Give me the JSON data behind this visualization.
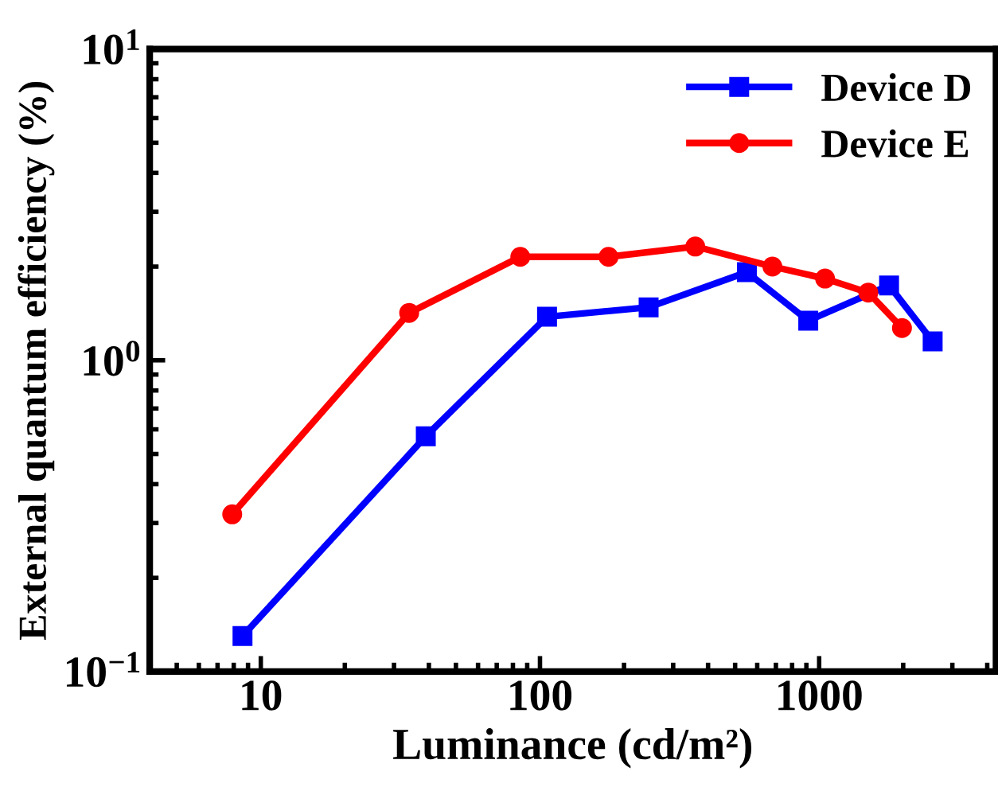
{
  "chart_data": {
    "type": "line",
    "xlabel": "Luminance (cd/m²)",
    "ylabel": "External quantum efficiency (%)",
    "log": "xy",
    "xlim": [
      4,
      4300
    ],
    "ylim": [
      0.1,
      10
    ],
    "xticks": [
      10,
      100,
      1000
    ],
    "yticks": [
      {
        "value": 0.1,
        "label": "10$^{−1}$"
      },
      {
        "value": 1,
        "label": "10$^{0}$"
      },
      {
        "value": 10,
        "label": "10$^{1}$"
      }
    ],
    "grid": false,
    "legend": "top right",
    "line_style": "solid",
    "series": [
      {
        "name": "Device D",
        "color": "#0000ff",
        "marker": "square",
        "x": [
          8.6,
          39,
          106,
          245,
          551,
          914,
          1780,
          2550
        ],
        "values": [
          0.13,
          0.57,
          1.38,
          1.48,
          1.92,
          1.34,
          1.74,
          1.15
        ]
      },
      {
        "name": "Device E",
        "color": "#ff0000",
        "marker": "circle",
        "x": [
          7.9,
          34,
          85,
          176,
          360,
          680,
          1050,
          1500,
          1980
        ],
        "values": [
          0.32,
          1.42,
          2.15,
          2.15,
          2.32,
          2.0,
          1.83,
          1.65,
          1.27
        ]
      }
    ]
  }
}
